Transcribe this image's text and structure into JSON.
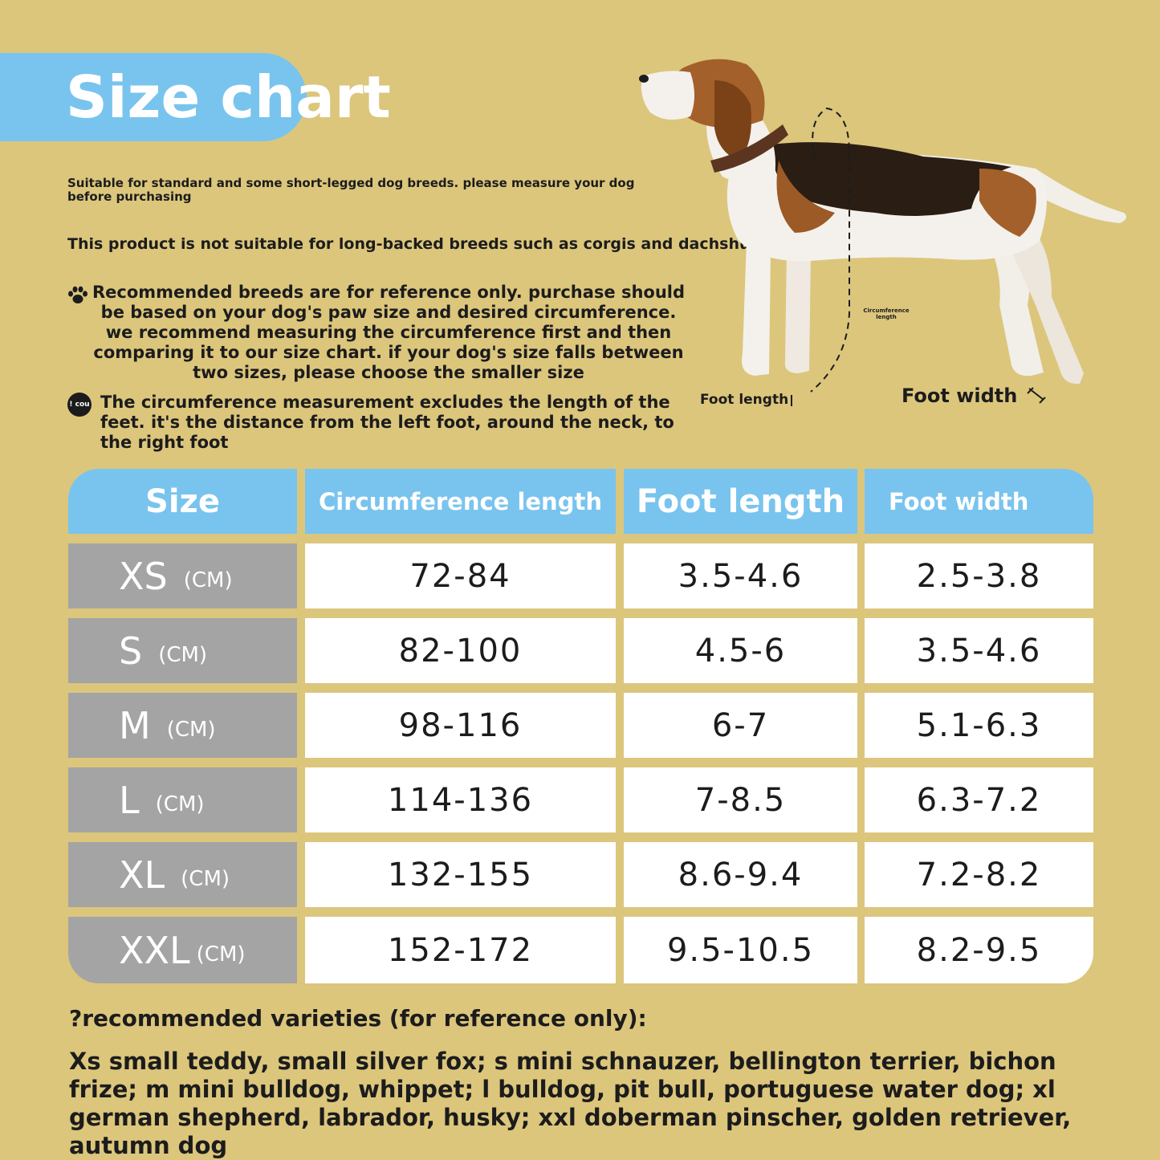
{
  "header": {
    "title": "Size chart"
  },
  "notes": {
    "suitability": "Suitable for standard and some short-legged dog breeds. please measure your dog before purchasing",
    "not_suitable": "This product is not suitable for long-backed breeds such as corgis and dachshunds",
    "breeds_reference": "Recommended breeds are for reference only. purchase should be based on your dog's paw size and desired circumference. we recommend measuring the circumference first and then comparing it to our size chart. if your dog's size falls between two sizes, please choose the smaller size",
    "measurement_note": "The circumference measurement excludes the length of the feet. it's the distance from the left foot, around the neck, to the right foot",
    "info_icon_text": "! cou"
  },
  "diagram": {
    "circumference_label": "Circumference length",
    "foot_length_label": "Foot length",
    "foot_width_label": "Foot width"
  },
  "table": {
    "headers": [
      "Size",
      "Circumference length",
      "Foot length",
      "Foot width"
    ],
    "rows": [
      {
        "size": "XS",
        "unit": "(CM)",
        "circumference": "72-84",
        "foot_length": "3.5-4.6",
        "foot_width": "2.5-3.8"
      },
      {
        "size": "S",
        "unit": "(CM)",
        "circumference": "82-100",
        "foot_length": "4.5-6",
        "foot_width": "3.5-4.6"
      },
      {
        "size": "M",
        "unit": "(CM)",
        "circumference": "98-116",
        "foot_length": "6-7",
        "foot_width": "5.1-6.3"
      },
      {
        "size": "L",
        "unit": "(CM)",
        "circumference": "114-136",
        "foot_length": "7-8.5",
        "foot_width": "6.3-7.2"
      },
      {
        "size": "XL",
        "unit": "(CM)",
        "circumference": "132-155",
        "foot_length": "8.6-9.4",
        "foot_width": "7.2-8.2"
      },
      {
        "size": "XXL",
        "unit": "(CM)",
        "circumference": "152-172",
        "foot_length": "9.5-10.5",
        "foot_width": "8.2-9.5"
      }
    ]
  },
  "recommendations": {
    "heading": "?recommended varieties (for reference only):",
    "body": "Xs small teddy, small silver fox; s mini schnauzer, bellington terrier, bichon frize; m mini bulldog, whippet; l bulldog, pit bull, portuguese water dog; xl german shepherd, labrador, husky; xxl doberman pinscher, golden retriever, autumn dog"
  },
  "colors": {
    "background": "#dcc67c",
    "header_blue": "#79c4ee",
    "size_gray": "#a4a4a4",
    "cell_white": "#ffffff"
  },
  "icons": [
    "paw-icon",
    "info-icon",
    "dog-illustration"
  ]
}
